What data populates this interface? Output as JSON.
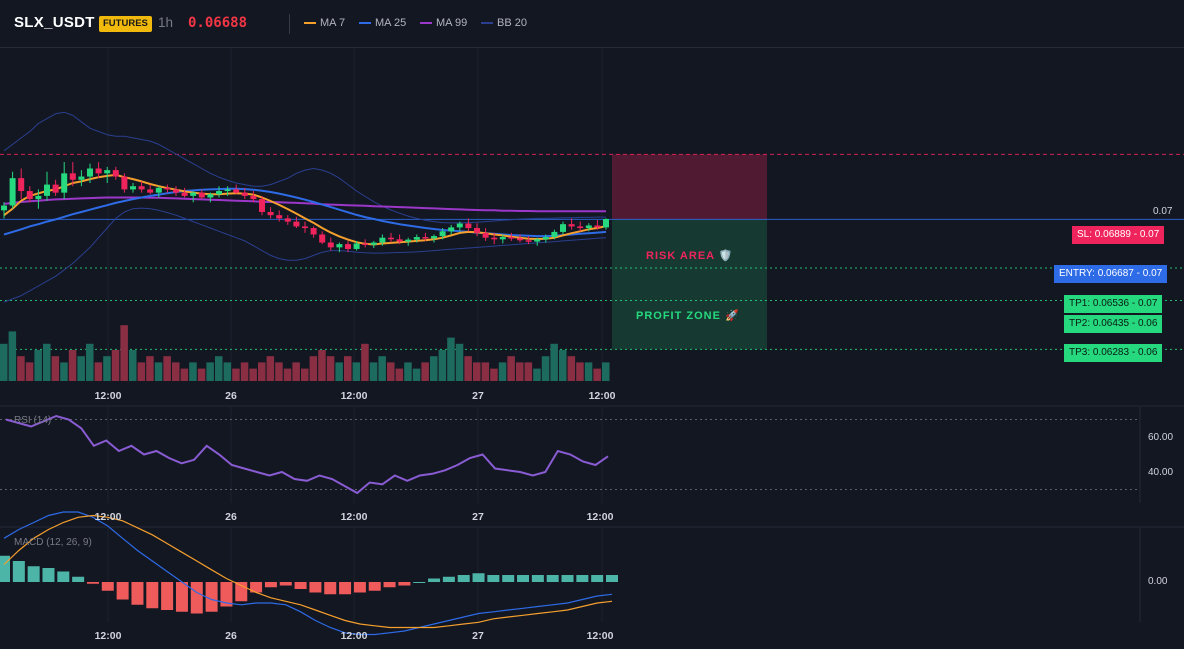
{
  "header": {
    "symbol": "SLX_USDT",
    "badge": "FUTURES",
    "timeframe": "1h",
    "last_price": "0.06688",
    "legend": [
      {
        "label": "MA 7",
        "color": "#f59f2d"
      },
      {
        "label": "MA 25",
        "color": "#2e6be6"
      },
      {
        "label": "MA 99",
        "color": "#9b37c9"
      },
      {
        "label": "BB 20",
        "color": "#2a3f8f"
      }
    ]
  },
  "colors": {
    "up": "#26d97f",
    "down": "#f0245c",
    "volume_up": "#1d6b5e",
    "volume_down": "#8a2f43",
    "rsi": "#8a5cd4",
    "macd": "#2e6be6",
    "signal": "#f59f2d",
    "hist_up": "#4cb5a8",
    "hist_down": "#ef5a5a",
    "entry": "#2e6be6",
    "sl": "#f0245c",
    "tp": "#26d97f"
  },
  "levels": {
    "sl": {
      "label": "SL: 0.06889",
      "value": "0.07",
      "price": 0.06889
    },
    "entry": {
      "label": "ENTRY: 0.06687",
      "value": "0.07",
      "price": 0.06687
    },
    "tp1": {
      "label": "TP1: 0.06536",
      "value": "0.07",
      "price": 0.06536
    },
    "tp2": {
      "label": "TP2: 0.06435",
      "value": "0.06",
      "price": 0.06435
    },
    "tp3": {
      "label": "TP3: 0.06283",
      "value": "0.06",
      "price": 0.06283
    }
  },
  "zones": {
    "risk": "RISK AREA 🛡️",
    "profit": "PROFIT ZONE 🚀"
  },
  "price_axis": {
    "tick": "0.07"
  },
  "time_labels": [
    "12:00",
    "26",
    "12:00",
    "27",
    "12:00"
  ],
  "rsi": {
    "title": "RSI (14)",
    "ticks": [
      "60.00",
      "40.00"
    ]
  },
  "macd": {
    "title": "MACD (12, 26, 9)",
    "ticks": [
      "0.00"
    ]
  },
  "chart_data": {
    "type": "candlestick",
    "timeframe": "1h",
    "ylim": [
      0.0625,
      0.0712
    ],
    "candles": [
      [
        0.06715,
        0.0674,
        0.0669,
        0.0673
      ],
      [
        0.0673,
        0.06835,
        0.0672,
        0.06815
      ],
      [
        0.06815,
        0.06845,
        0.0675,
        0.06775
      ],
      [
        0.06775,
        0.0679,
        0.0674,
        0.0675
      ],
      [
        0.0675,
        0.0678,
        0.0672,
        0.0676
      ],
      [
        0.0676,
        0.06835,
        0.06745,
        0.06795
      ],
      [
        0.06795,
        0.0681,
        0.0676,
        0.0677
      ],
      [
        0.0677,
        0.06865,
        0.0675,
        0.0683
      ],
      [
        0.0683,
        0.06865,
        0.0679,
        0.0681
      ],
      [
        0.0681,
        0.0684,
        0.0679,
        0.0682
      ],
      [
        0.0682,
        0.0686,
        0.068,
        0.06845
      ],
      [
        0.06845,
        0.06865,
        0.06815,
        0.0683
      ],
      [
        0.0683,
        0.0685,
        0.068,
        0.0684
      ],
      [
        0.0684,
        0.0685,
        0.0681,
        0.0682
      ],
      [
        0.0682,
        0.0683,
        0.0677,
        0.0678
      ],
      [
        0.0678,
        0.068,
        0.0677,
        0.0679
      ],
      [
        0.0679,
        0.06805,
        0.0677,
        0.0678
      ],
      [
        0.0678,
        0.06795,
        0.06765,
        0.0677
      ],
      [
        0.0677,
        0.0679,
        0.06755,
        0.06785
      ],
      [
        0.06785,
        0.06795,
        0.0677,
        0.0678
      ],
      [
        0.0678,
        0.0679,
        0.0676,
        0.0677
      ],
      [
        0.0677,
        0.06785,
        0.06755,
        0.0676
      ],
      [
        0.0676,
        0.06775,
        0.0674,
        0.0677
      ],
      [
        0.0677,
        0.0678,
        0.0675,
        0.06755
      ],
      [
        0.06755,
        0.0677,
        0.0674,
        0.06765
      ],
      [
        0.06765,
        0.0679,
        0.06755,
        0.06775
      ],
      [
        0.06775,
        0.0679,
        0.0676,
        0.0678
      ],
      [
        0.0678,
        0.06795,
        0.06765,
        0.0677
      ],
      [
        0.0677,
        0.06785,
        0.0675,
        0.0676
      ],
      [
        0.0676,
        0.06775,
        0.0674,
        0.0675
      ],
      [
        0.0675,
        0.0676,
        0.067,
        0.0671
      ],
      [
        0.0671,
        0.06725,
        0.0669,
        0.067
      ],
      [
        0.067,
        0.06715,
        0.0668,
        0.0669
      ],
      [
        0.0669,
        0.067,
        0.0667,
        0.0668
      ],
      [
        0.0668,
        0.06695,
        0.0666,
        0.06665
      ],
      [
        0.06665,
        0.0668,
        0.06645,
        0.0666
      ],
      [
        0.0666,
        0.06665,
        0.0663,
        0.0664
      ],
      [
        0.0664,
        0.0665,
        0.0661,
        0.06615
      ],
      [
        0.06615,
        0.0663,
        0.0659,
        0.066
      ],
      [
        0.066,
        0.06615,
        0.06585,
        0.0661
      ],
      [
        0.0661,
        0.0662,
        0.06585,
        0.06595
      ],
      [
        0.06595,
        0.0662,
        0.0659,
        0.06612
      ],
      [
        0.06612,
        0.06625,
        0.066,
        0.06608
      ],
      [
        0.06608,
        0.0662,
        0.06598,
        0.06615
      ],
      [
        0.06615,
        0.0664,
        0.06605,
        0.0663
      ],
      [
        0.0663,
        0.06645,
        0.06615,
        0.06625
      ],
      [
        0.06625,
        0.0664,
        0.0661,
        0.06618
      ],
      [
        0.06618,
        0.0663,
        0.06605,
        0.06624
      ],
      [
        0.06624,
        0.0664,
        0.06615,
        0.06632
      ],
      [
        0.06632,
        0.06645,
        0.0662,
        0.06628
      ],
      [
        0.06628,
        0.0664,
        0.06615,
        0.06635
      ],
      [
        0.06635,
        0.0666,
        0.06625,
        0.0665
      ],
      [
        0.0665,
        0.0667,
        0.0664,
        0.06662
      ],
      [
        0.06662,
        0.0668,
        0.0665,
        0.06674
      ],
      [
        0.06674,
        0.0669,
        0.0665,
        0.0666
      ],
      [
        0.0666,
        0.06675,
        0.06635,
        0.06645
      ],
      [
        0.06645,
        0.0666,
        0.0662,
        0.0663
      ],
      [
        0.0663,
        0.06645,
        0.0661,
        0.06625
      ],
      [
        0.06625,
        0.0664,
        0.06612,
        0.06632
      ],
      [
        0.06632,
        0.06645,
        0.0662,
        0.06628
      ],
      [
        0.06628,
        0.0664,
        0.06615,
        0.06622
      ],
      [
        0.06622,
        0.06635,
        0.0661,
        0.06618
      ],
      [
        0.06618,
        0.0663,
        0.06605,
        0.06625
      ],
      [
        0.06625,
        0.0664,
        0.06615,
        0.06632
      ],
      [
        0.06632,
        0.06655,
        0.06625,
        0.06648
      ],
      [
        0.06648,
        0.0668,
        0.0664,
        0.06672
      ],
      [
        0.06672,
        0.0669,
        0.06655,
        0.06665
      ],
      [
        0.06665,
        0.0668,
        0.0665,
        0.0666
      ],
      [
        0.0666,
        0.06675,
        0.0665,
        0.06668
      ],
      [
        0.06668,
        0.06685,
        0.06655,
        0.06662
      ],
      [
        0.06662,
        0.0669,
        0.06655,
        0.06688
      ]
    ],
    "volume": [
      6,
      8,
      4,
      3,
      5,
      6,
      4,
      3,
      5,
      4,
      6,
      3,
      4,
      5,
      9,
      5,
      3,
      4,
      3,
      4,
      3,
      2,
      3,
      2,
      3,
      4,
      3,
      2,
      3,
      2,
      3,
      4,
      3,
      2,
      3,
      2,
      4,
      5,
      4,
      3,
      4,
      3,
      6,
      3,
      4,
      3,
      2,
      3,
      2,
      3,
      4,
      5,
      7,
      6,
      4,
      3,
      3,
      2,
      3,
      4,
      3,
      3,
      2,
      4,
      6,
      5,
      4,
      3,
      3,
      2,
      3
    ],
    "ma7": [
      0.067,
      0.0672,
      0.06745,
      0.0676,
      0.06768,
      0.06775,
      0.0678,
      0.0679,
      0.068,
      0.06805,
      0.06812,
      0.06818,
      0.06822,
      0.06825,
      0.06818,
      0.06812,
      0.06805,
      0.06797,
      0.0679,
      0.06784,
      0.06779,
      0.06774,
      0.0677,
      0.06767,
      0.06765,
      0.06765,
      0.06767,
      0.06768,
      0.06767,
      0.06764,
      0.06755,
      0.06744,
      0.06732,
      0.06719,
      0.06705,
      0.0669,
      0.06676,
      0.0666,
      0.06646,
      0.06634,
      0.06624,
      0.06616,
      0.06611,
      0.06609,
      0.06612,
      0.06614,
      0.06616,
      0.06618,
      0.0662,
      0.06622,
      0.06625,
      0.0663,
      0.06637,
      0.06645,
      0.06648,
      0.06647,
      0.06644,
      0.0664,
      0.06637,
      0.06633,
      0.0663,
      0.06627,
      0.06626,
      0.06627,
      0.0663,
      0.06637,
      0.06644,
      0.0665,
      0.06656,
      0.0666,
      0.06666
    ],
    "ma25": [
      0.0664,
      0.06648,
      0.06656,
      0.06665,
      0.06672,
      0.0668,
      0.06687,
      0.06695,
      0.06703,
      0.0671,
      0.06717,
      0.06724,
      0.06731,
      0.06738,
      0.06744,
      0.0675,
      0.06755,
      0.0676,
      0.06764,
      0.06768,
      0.06772,
      0.06775,
      0.06777,
      0.06779,
      0.0678,
      0.06781,
      0.06782,
      0.06782,
      0.06781,
      0.06779,
      0.06776,
      0.06772,
      0.06767,
      0.06761,
      0.06755,
      0.06748,
      0.06741,
      0.06733,
      0.06725,
      0.06717,
      0.06709,
      0.06701,
      0.06694,
      0.06688,
      0.06682,
      0.06677,
      0.06672,
      0.06668,
      0.06664,
      0.0666,
      0.06657,
      0.06654,
      0.06652,
      0.0665,
      0.06648,
      0.06646,
      0.06644,
      0.06642,
      0.0664,
      0.06638,
      0.06637,
      0.06636,
      0.06635,
      0.06635,
      0.06636,
      0.06638,
      0.0664,
      0.06642,
      0.06644,
      0.06646,
      0.06648
    ],
    "ma99": [
      0.06735,
      0.06738,
      0.06741,
      0.06743,
      0.06745,
      0.06747,
      0.06749,
      0.0675,
      0.06751,
      0.06752,
      0.06753,
      0.06754,
      0.06755,
      0.06755,
      0.06755,
      0.06755,
      0.06755,
      0.06754,
      0.06754,
      0.06753,
      0.06752,
      0.06751,
      0.0675,
      0.06749,
      0.06748,
      0.06747,
      0.06746,
      0.06745,
      0.06744,
      0.06743,
      0.06742,
      0.06741,
      0.0674,
      0.06739,
      0.06738,
      0.06737,
      0.06736,
      0.06734,
      0.06733,
      0.06732,
      0.06731,
      0.0673,
      0.06729,
      0.06728,
      0.06727,
      0.06726,
      0.06725,
      0.06724,
      0.06723,
      0.06722,
      0.06721,
      0.0672,
      0.06719,
      0.06718,
      0.06717,
      0.06716,
      0.06715,
      0.06715,
      0.06714,
      0.06714,
      0.06713,
      0.06713,
      0.06712,
      0.06712,
      0.06712,
      0.06712,
      0.06712,
      0.06712,
      0.06712,
      0.06712,
      0.06712
    ],
    "bb_upper": [
      0.069,
      0.0692,
      0.0694,
      0.0696,
      0.06985,
      0.07,
      0.07015,
      0.0702,
      0.0701,
      0.0699,
      0.0697,
      0.0696,
      0.0695,
      0.06945,
      0.06945,
      0.0694,
      0.06935,
      0.0693,
      0.0692,
      0.06905,
      0.0689,
      0.06875,
      0.0686,
      0.06845,
      0.0683,
      0.06818,
      0.06808,
      0.068,
      0.06795,
      0.0679,
      0.0679,
      0.06795,
      0.06805,
      0.06815,
      0.0683,
      0.0684,
      0.06845,
      0.0684,
      0.0683,
      0.06815,
      0.06795,
      0.06775,
      0.06758,
      0.06742,
      0.06728,
      0.06716,
      0.06706,
      0.06697,
      0.0669,
      0.06684,
      0.0668,
      0.06677,
      0.06676,
      0.06676,
      0.06677,
      0.06678,
      0.0668,
      0.06682,
      0.06684,
      0.06686,
      0.06688,
      0.06689,
      0.0669,
      0.0669,
      0.06691,
      0.06692,
      0.06692,
      0.06693,
      0.06693,
      0.06694,
      0.06694
    ],
    "bb_lower": [
      0.0643,
      0.0644,
      0.0645,
      0.06465,
      0.0648,
      0.06495,
      0.0651,
      0.0653,
      0.0655,
      0.06575,
      0.066,
      0.0663,
      0.0666,
      0.0669,
      0.0671,
      0.0672,
      0.06722,
      0.0672,
      0.06715,
      0.06708,
      0.067,
      0.0669,
      0.0668,
      0.0667,
      0.0666,
      0.0665,
      0.0664,
      0.0663,
      0.0662,
      0.06605,
      0.0659,
      0.06575,
      0.06565,
      0.0656,
      0.0656,
      0.06565,
      0.06575,
      0.06585,
      0.0659,
      0.0659,
      0.06588,
      0.06585,
      0.06583,
      0.06582,
      0.06582,
      0.06583,
      0.06584,
      0.06585,
      0.06586,
      0.06588,
      0.0659,
      0.06592,
      0.06594,
      0.06596,
      0.06598,
      0.066,
      0.06602,
      0.06604,
      0.06606,
      0.06608,
      0.0661,
      0.06612,
      0.06614,
      0.06616,
      0.06618,
      0.0662,
      0.06622,
      0.06624,
      0.06626,
      0.06628,
      0.0663
    ],
    "rsi_values": [
      70,
      68,
      66,
      69,
      72,
      70,
      65,
      55,
      58,
      52,
      55,
      50,
      52,
      48,
      45,
      47,
      55,
      50,
      44,
      42,
      40,
      38,
      40,
      36,
      35,
      38,
      36,
      32,
      28,
      34,
      33,
      38,
      35,
      38,
      39,
      41,
      44,
      48,
      50,
      42,
      41,
      40,
      38,
      40,
      52,
      50,
      46,
      44,
      49
    ],
    "macd_values": [
      0.00025,
      0.0003,
      0.00034,
      0.00038,
      0.0004,
      0.0004,
      0.00037,
      0.00032,
      0.00025,
      0.00018,
      0.00012,
      6e-05,
      0.0,
      -6e-05,
      -0.0001,
      -0.00012,
      -0.00013,
      -0.00012,
      -0.00012,
      -0.00013,
      -0.00017,
      -0.00022,
      -0.00026,
      -0.00029,
      -0.0003,
      -0.0003,
      -0.00029,
      -0.00028,
      -0.00026,
      -0.00024,
      -0.00022,
      -0.0002,
      -0.00018,
      -0.00017,
      -0.00016,
      -0.00015,
      -0.00014,
      -0.00013,
      -0.00012,
      -0.0001,
      -8e-05,
      -7e-05
    ],
    "signal_values": [
      0.0001,
      0.00018,
      0.00025,
      0.0003,
      0.00034,
      0.00037,
      0.00038,
      0.00037,
      0.00035,
      0.00031,
      0.00027,
      0.00022,
      0.00017,
      0.00012,
      7e-05,
      2e-05,
      -2e-05,
      -6e-05,
      -9e-05,
      -0.00011,
      -0.00013,
      -0.00016,
      -0.00019,
      -0.00022,
      -0.00024,
      -0.00025,
      -0.00026,
      -0.00026,
      -0.00026,
      -0.00026,
      -0.00025,
      -0.00024,
      -0.00023,
      -0.00021,
      -0.0002,
      -0.00019,
      -0.00018,
      -0.00017,
      -0.00016,
      -0.00014,
      -0.00012,
      -0.00011
    ],
    "hist_values": [
      0.00015,
      0.00012,
      9e-05,
      8e-05,
      6e-05,
      3e-05,
      -1e-05,
      -5e-05,
      -0.0001,
      -0.00013,
      -0.00015,
      -0.00016,
      -0.00017,
      -0.00018,
      -0.00017,
      -0.00014,
      -0.00011,
      -6e-05,
      -3e-05,
      -2e-05,
      -4e-05,
      -6e-05,
      -7e-05,
      -7e-05,
      -6e-05,
      -5e-05,
      -3e-05,
      -2e-05,
      0.0,
      2e-05,
      3e-05,
      4e-05,
      5e-05,
      4e-05,
      4e-05,
      4e-05,
      4e-05,
      4e-05,
      4e-05,
      4e-05,
      4e-05,
      4e-05
    ]
  }
}
